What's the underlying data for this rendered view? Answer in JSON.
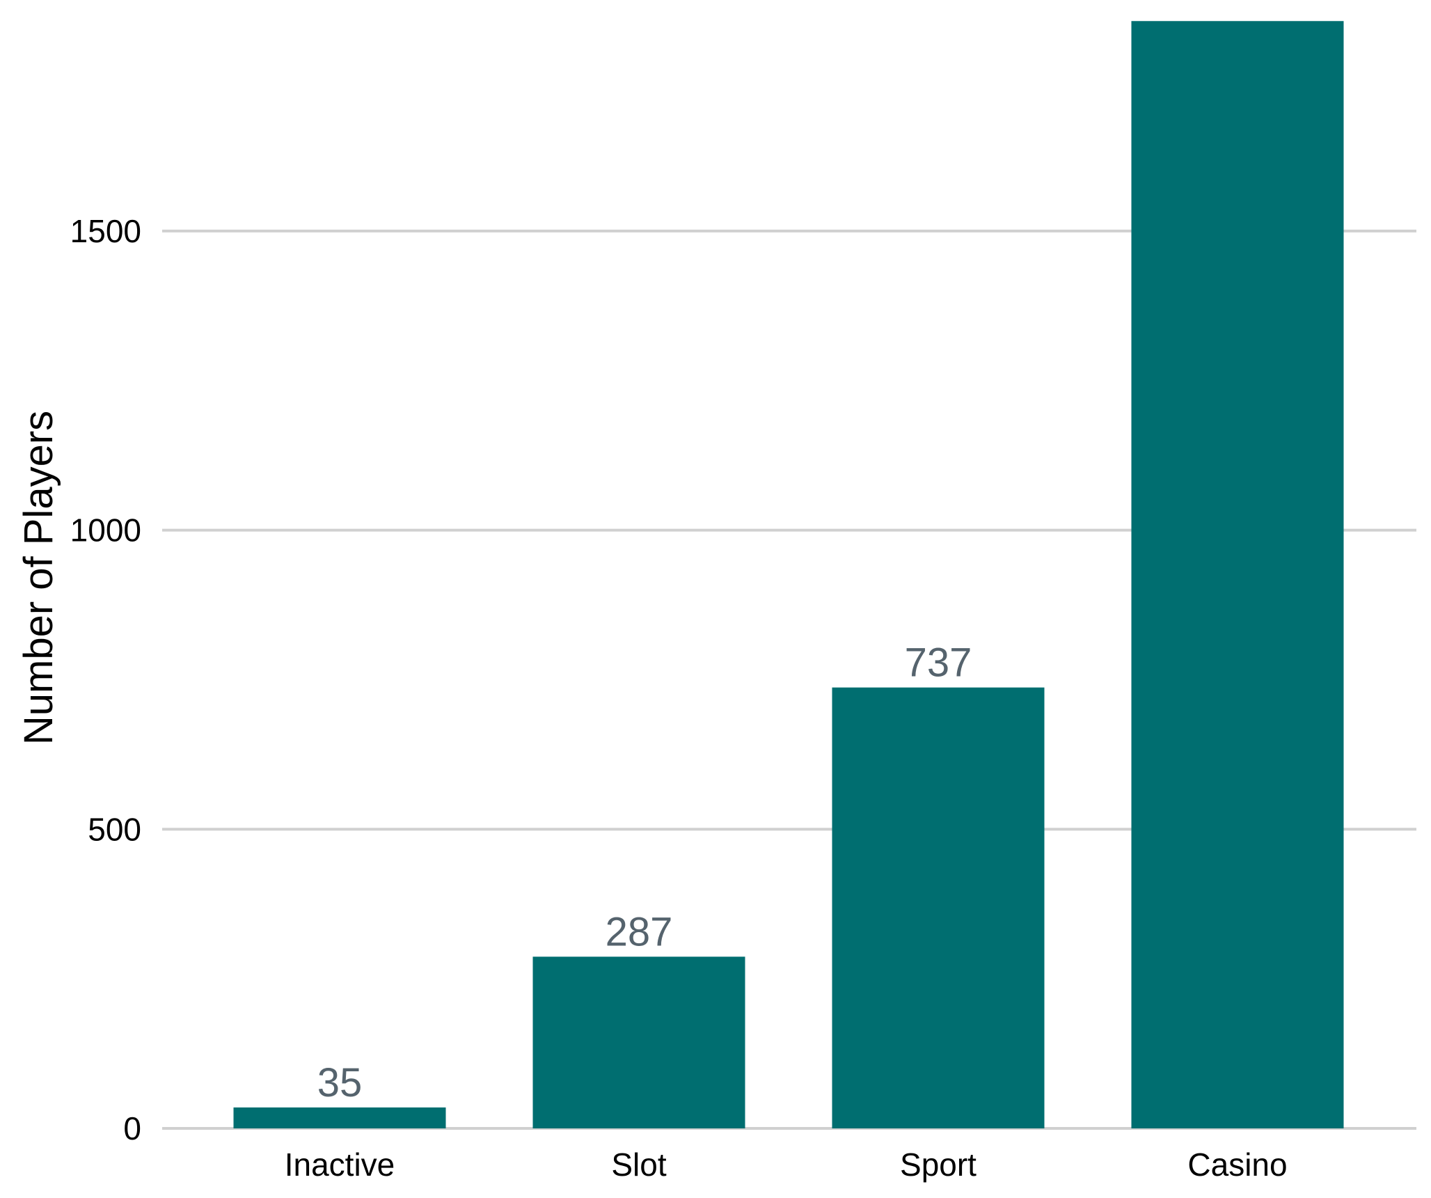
{
  "chart_data": {
    "type": "bar",
    "title": "",
    "xlabel": "",
    "ylabel": "Number of Players",
    "categories": [
      "Inactive",
      "Slot",
      "Sport",
      "Casino"
    ],
    "values": [
      35,
      287,
      737,
      1851
    ],
    "data_labels": [
      "35",
      "287",
      "737",
      ""
    ],
    "yticks": [
      0,
      500,
      1000,
      1500
    ],
    "ylim": [
      0,
      1900
    ],
    "grid": "horizontal",
    "legend": "none",
    "colors": {
      "bar": "#006e70",
      "grid": "#d0d0d0",
      "data_label": "#55636d",
      "text": "#000000"
    }
  }
}
